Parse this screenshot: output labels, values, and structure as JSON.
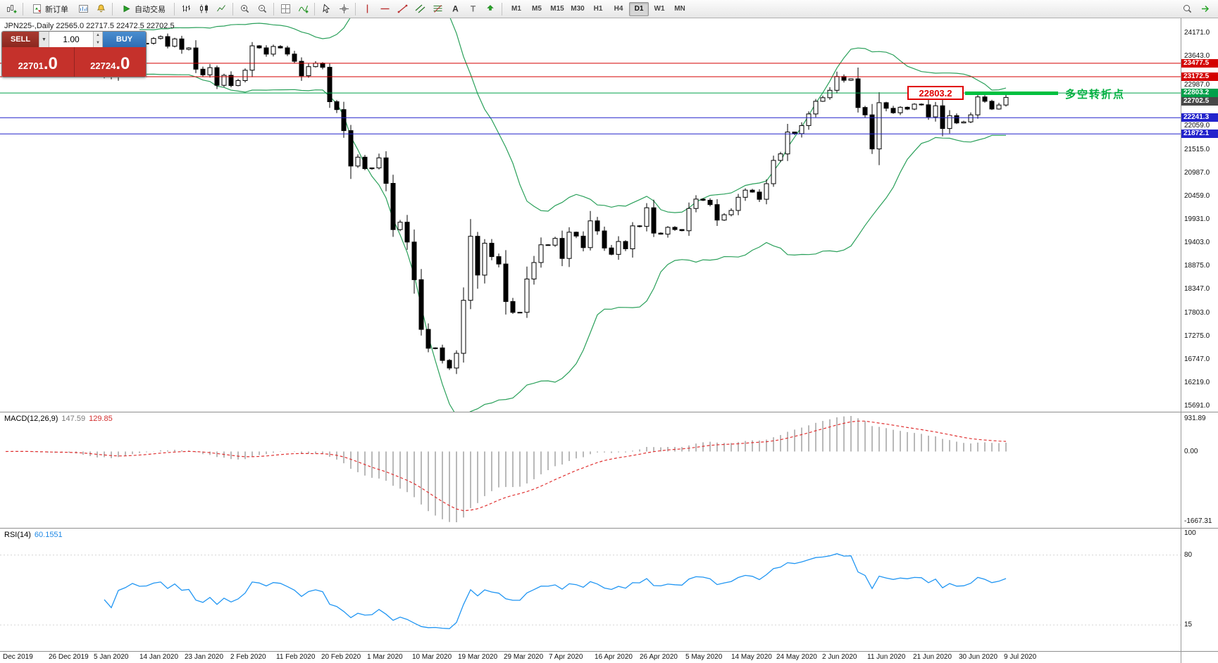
{
  "toolbar": {
    "new_order_label": "新订单",
    "autotrading_label": "自动交易",
    "timeframes": [
      "M1",
      "M5",
      "M15",
      "M30",
      "H1",
      "H4",
      "D1",
      "W1",
      "MN"
    ],
    "active_timeframe": "D1"
  },
  "quote_panel": {
    "sell_label": "SELL",
    "buy_label": "BUY",
    "volume": "1.00",
    "bid": "22701",
    "bid_frac": ".0",
    "ask": "22724",
    "ask_frac": ".0"
  },
  "chart": {
    "symbol_line": "JPN225-,Daily  22565.0 22717.5 22472.5 22702.5",
    "annotation": {
      "price": 22803.2,
      "price_label": "22803.2",
      "note": "多空转折点"
    }
  },
  "macd": {
    "name": "MACD(12,26,9)",
    "main_value": "147.59",
    "signal_value": "129.85",
    "axis_top": "931.89",
    "axis_zero": "0.00",
    "axis_bottom": "-1667.31"
  },
  "rsi": {
    "name": "RSI(14)",
    "value": "60.1551",
    "axis": [
      {
        "label": "100",
        "value": 100
      },
      {
        "label": "80",
        "value": 80
      },
      {
        "label": "15",
        "value": 15
      }
    ]
  },
  "colors": {
    "bollinger": "#2aa05a",
    "rsi": "#2196f3",
    "macd_histogram": "#b9b9b9",
    "macd_signal": "#e03131",
    "hline_red": "#d40000",
    "hline_blue": "#2323cc",
    "hline_green": "#00a04a",
    "annotation_green": "#00c040",
    "panel_red": "#c5312b",
    "buy_blue": "#2e6db4"
  },
  "chart_data": {
    "type": "candlestick",
    "symbol": "JPN225-",
    "timeframe": "Daily",
    "ohlc_display": {
      "open": "22565.0",
      "high": "22717.5",
      "low": "22472.5",
      "close": "22702.5"
    },
    "y_range": [
      15560,
      24500
    ],
    "y_ticks": [
      24171.0,
      23643.0,
      22987.0,
      22059.0,
      21515.0,
      20987.0,
      20459.0,
      19931.0,
      19403.0,
      18875.0,
      18347.0,
      17803.0,
      17275.0,
      16747.0,
      16219.0,
      15691.0
    ],
    "hlines": [
      {
        "price": 23477.5,
        "label": "23477.5",
        "color": "#d40000",
        "line": true
      },
      {
        "price": 23172.5,
        "label": "23172.5",
        "color": "#d40000",
        "line": true
      },
      {
        "price": 22803.2,
        "label": "22803.2",
        "color": "#00a04a",
        "line": true
      },
      {
        "price": 22702.5,
        "label": "22702.5",
        "color": "#484848",
        "line": false
      },
      {
        "price": 22241.3,
        "label": "22241.3",
        "color": "#2323cc",
        "line": true
      },
      {
        "price": 21872.1,
        "label": "21872.1",
        "color": "#2323cc",
        "line": true
      }
    ],
    "current_price": 22702.5,
    "indicators": {
      "bollinger": {
        "period": 20,
        "deviation": 2
      },
      "macd": {
        "fast": 12,
        "slow": 26,
        "signal": 9
      },
      "rsi": {
        "period": 14
      }
    },
    "x_labels": [
      "Dec 2019",
      "26 Dec 2019",
      "5 Jan 2020",
      "14 Jan 2020",
      "23 Jan 2020",
      "2 Feb 2020",
      "11 Feb 2020",
      "20 Feb 2020",
      "1 Mar 2020",
      "10 Mar 2020",
      "19 Mar 2020",
      "29 Mar 2020",
      "7 Apr 2020",
      "16 Apr 2020",
      "26 Apr 2020",
      "5 May 2020",
      "14 May 2020",
      "24 May 2020",
      "2 Jun 2020",
      "11 Jun 2020",
      "21 Jun 2020",
      "30 Jun 2020",
      "9 Jul 2020"
    ],
    "closes": [
      23952,
      24066,
      23934,
      23864,
      23817,
      23821,
      23830,
      23782,
      23924,
      23838,
      23657,
      23405,
      23320,
      23205,
      23575,
      23204,
      23740,
      23851,
      24025,
      23917,
      23933,
      24041,
      24084,
      23865,
      24031,
      23795,
      23827,
      23344,
      23216,
      23379,
      22978,
      23205,
      22972,
      23085,
      23320,
      23874,
      23828,
      23686,
      23861,
      23828,
      23687,
      23523,
      23194,
      23401,
      23479,
      23387,
      22605,
      22426,
      21948,
      21143,
      21344,
      21083,
      21100,
      21329,
      20750,
      19699,
      19867,
      19416,
      18560,
      17431,
      17002,
      17011,
      16727,
      16553,
      16888,
      18092,
      19547,
      18665,
      19389,
      19085,
      18917,
      18065,
      17819,
      17820,
      18576,
      18950,
      19353,
      19346,
      19499,
      19043,
      19639,
      19551,
      19290,
      19897,
      19669,
      19281,
      19137,
      19429,
      19262,
      19783,
      19771,
      20194,
      19619,
      19595,
      19750,
      19700,
      19674,
      20179,
      20391,
      20366,
      20267,
      19915,
      20037,
      20134,
      20433,
      20595,
      20552,
      20388,
      20741,
      21271,
      21419,
      21916,
      21878,
      22062,
      22326,
      22614,
      22696,
      22864,
      23178,
      23091,
      23125,
      22473,
      22305,
      21531,
      22582,
      22455,
      22355,
      22479,
      22437,
      22549,
      22534,
      22260,
      22512,
      21995,
      22288,
      22122,
      22146,
      22306,
      22714,
      22615,
      22439,
      22530,
      22702.5
    ]
  }
}
